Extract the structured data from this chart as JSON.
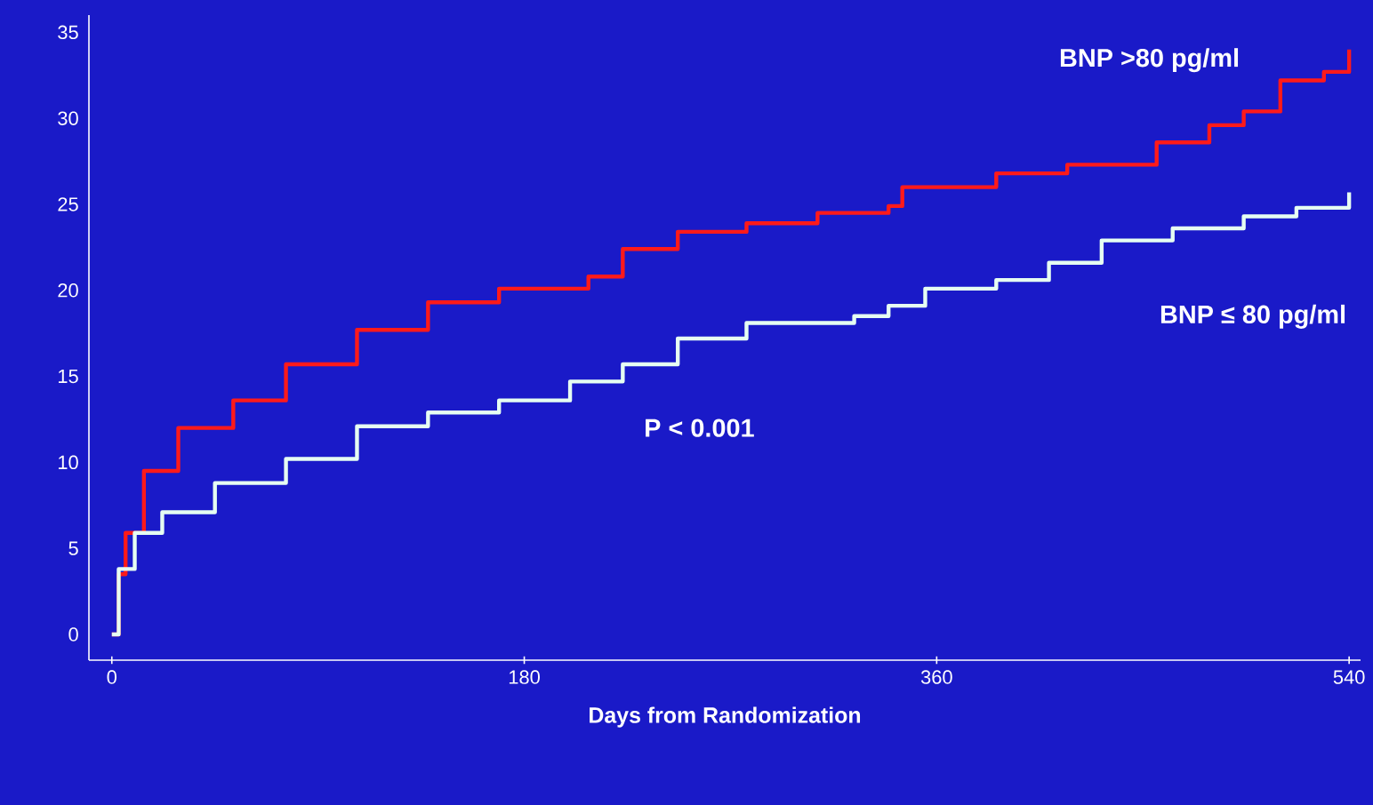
{
  "chart_data": {
    "type": "step",
    "xlabel": "Days from Randomization",
    "x": [
      0,
      3,
      6,
      14,
      29,
      53,
      76,
      107,
      138,
      169,
      208,
      223,
      247,
      277,
      308,
      339,
      345,
      386,
      417,
      456,
      479,
      494,
      510,
      529,
      540
    ],
    "series": [
      {
        "name": "BNP >80 pg/ml",
        "color": "#ff1a1a",
        "values": [
          0,
          3.5,
          5.9,
          9.5,
          12,
          13.6,
          15.7,
          17.7,
          19.3,
          20.1,
          20.8,
          22.4,
          23.4,
          23.9,
          24.5,
          24.9,
          26,
          26.8,
          27.3,
          28.6,
          29.6,
          30.4,
          32.2,
          32.7,
          34
        ]
      },
      {
        "name": "BNP ≤ 80 pg/ml",
        "color": "#e6fff2",
        "x": [
          0,
          3,
          10,
          22,
          45,
          76,
          107,
          138,
          169,
          200,
          223,
          247,
          277,
          324,
          339,
          355,
          386,
          409,
          432,
          463,
          494,
          517,
          540
        ],
        "values": [
          0,
          3.8,
          5.9,
          7.1,
          8.8,
          10.2,
          12.1,
          12.9,
          13.6,
          14.7,
          15.7,
          17.2,
          18.1,
          18.5,
          19.1,
          20.1,
          20.6,
          21.6,
          22.9,
          23.6,
          24.3,
          24.8,
          25.7
        ]
      }
    ],
    "annotations": [
      "P < 0.001"
    ],
    "xlim": [
      -10,
      545
    ],
    "ylim": [
      -1.5,
      36
    ],
    "xticks": [
      0,
      180,
      360,
      540
    ],
    "yticks": [
      0,
      5,
      10,
      15,
      20,
      25,
      30,
      35
    ],
    "grid": false,
    "marker": "none",
    "line_style": "solid"
  }
}
